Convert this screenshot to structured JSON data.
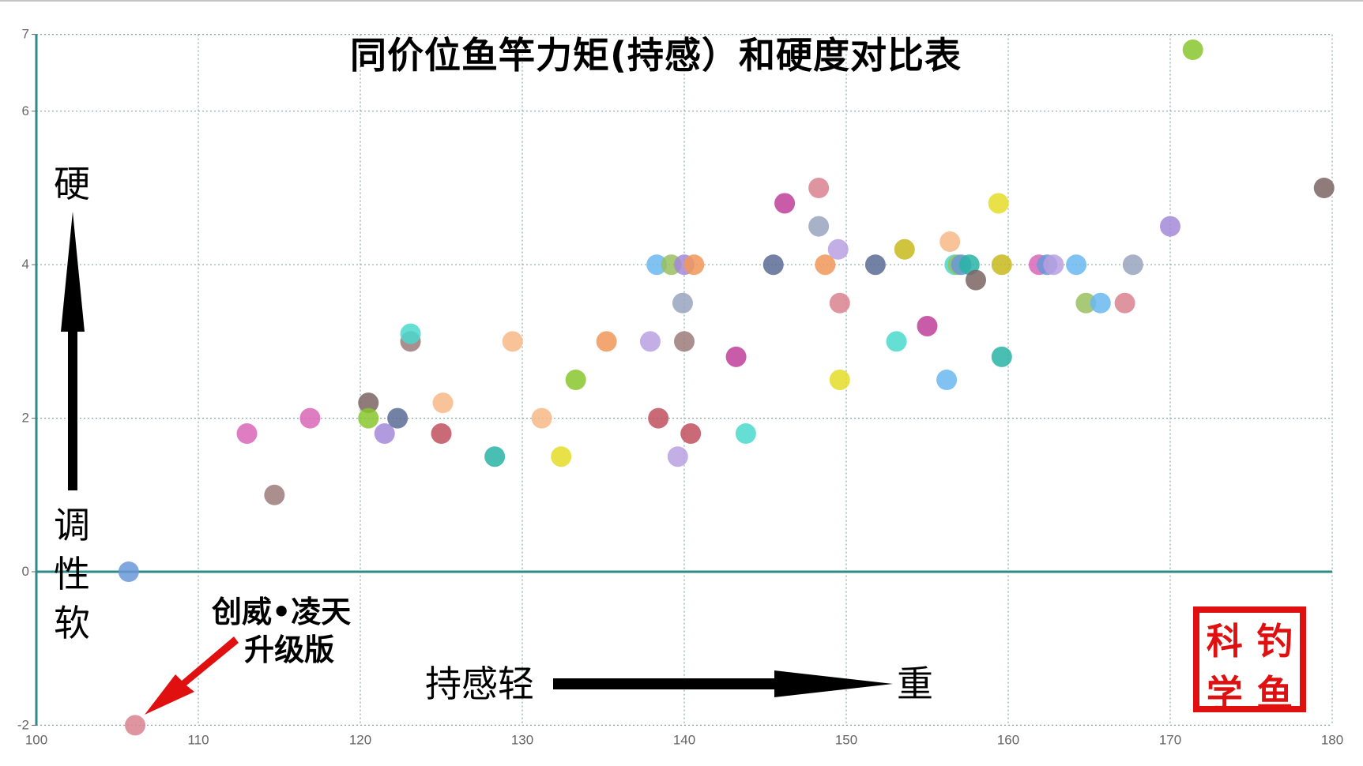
{
  "title": "同价位鱼竿力矩(持感）和硬度对比表",
  "y_axis_label": {
    "top": "硬",
    "bottom_chars": [
      "调",
      "性",
      "软"
    ]
  },
  "x_axis_label": {
    "left": "持感轻",
    "right": "重"
  },
  "annotation": {
    "line1": "创威•凌天",
    "line2": "升级版"
  },
  "seal": {
    "chars": [
      "科",
      "钓",
      "学",
      "鱼"
    ]
  },
  "colors": {
    "axis": "#2e8b87",
    "grid": "#8aa6a6",
    "arrow": "#000000",
    "highlight_arrow": "#e01010",
    "seal": "#e01010"
  },
  "chart_data": {
    "type": "scatter",
    "title": "同价位鱼竿力矩(持感）和硬度对比表",
    "xlabel": "持感轻 → 重",
    "ylabel": "调性软 → 硬",
    "xlim": [
      100,
      180
    ],
    "ylim": [
      -2,
      7
    ],
    "x_ticks": [
      100,
      110,
      120,
      130,
      140,
      150,
      160,
      170,
      180
    ],
    "y_ticks": [
      -2,
      0,
      2,
      4,
      6,
      7
    ],
    "grid": true,
    "legend": null,
    "annotations": [
      {
        "text": "创威•凌天 升级版",
        "points_to": [
          106.1,
          -2.0
        ]
      }
    ],
    "points": [
      {
        "x": 105.7,
        "y": 0.0,
        "color": "#6a98d8"
      },
      {
        "x": 106.1,
        "y": -2.0,
        "color": "#d9828f"
      },
      {
        "x": 113.0,
        "y": 1.8,
        "color": "#d966b8"
      },
      {
        "x": 114.7,
        "y": 1.0,
        "color": "#9c7b7b"
      },
      {
        "x": 116.9,
        "y": 2.0,
        "color": "#d966b8"
      },
      {
        "x": 120.5,
        "y": 2.2,
        "color": "#7d6464"
      },
      {
        "x": 120.5,
        "y": 2.0,
        "color": "#88c72e"
      },
      {
        "x": 121.5,
        "y": 1.8,
        "color": "#a588d8"
      },
      {
        "x": 122.3,
        "y": 2.0,
        "color": "#5a6c94"
      },
      {
        "x": 123.1,
        "y": 3.0,
        "color": "#9c7b7b"
      },
      {
        "x": 123.1,
        "y": 3.1,
        "color": "#4ad8cc"
      },
      {
        "x": 125.0,
        "y": 1.8,
        "color": "#c0505e"
      },
      {
        "x": 125.1,
        "y": 2.2,
        "color": "#f8b888"
      },
      {
        "x": 128.3,
        "y": 1.5,
        "color": "#28b4a4"
      },
      {
        "x": 129.4,
        "y": 3.0,
        "color": "#f8b888"
      },
      {
        "x": 131.2,
        "y": 2.0,
        "color": "#f8b888"
      },
      {
        "x": 132.4,
        "y": 1.5,
        "color": "#e4dc28"
      },
      {
        "x": 133.3,
        "y": 2.5,
        "color": "#88c72e"
      },
      {
        "x": 135.2,
        "y": 3.0,
        "color": "#f0985a"
      },
      {
        "x": 137.9,
        "y": 3.0,
        "color": "#b8a0e0"
      },
      {
        "x": 138.3,
        "y": 4.0,
        "color": "#6ab8f0"
      },
      {
        "x": 138.4,
        "y": 2.0,
        "color": "#c0505e"
      },
      {
        "x": 139.2,
        "y": 4.0,
        "color": "#98c060"
      },
      {
        "x": 139.6,
        "y": 1.5,
        "color": "#b8a0e0"
      },
      {
        "x": 139.9,
        "y": 3.5,
        "color": "#98a4c0"
      },
      {
        "x": 140.0,
        "y": 3.0,
        "color": "#9c7b7b"
      },
      {
        "x": 140.0,
        "y": 4.0,
        "color": "#a588d8"
      },
      {
        "x": 140.4,
        "y": 1.8,
        "color": "#c0505e"
      },
      {
        "x": 140.6,
        "y": 4.0,
        "color": "#f0985a"
      },
      {
        "x": 143.2,
        "y": 2.8,
        "color": "#c0409a"
      },
      {
        "x": 143.8,
        "y": 1.8,
        "color": "#4ad8cc"
      },
      {
        "x": 145.5,
        "y": 4.0,
        "color": "#5a6c94"
      },
      {
        "x": 146.2,
        "y": 4.8,
        "color": "#c0409a"
      },
      {
        "x": 148.3,
        "y": 5.0,
        "color": "#d9828f"
      },
      {
        "x": 148.3,
        "y": 4.5,
        "color": "#98a4c0"
      },
      {
        "x": 148.7,
        "y": 4.0,
        "color": "#f0985a"
      },
      {
        "x": 149.5,
        "y": 4.2,
        "color": "#b8a0e0"
      },
      {
        "x": 149.6,
        "y": 3.5,
        "color": "#d9828f"
      },
      {
        "x": 149.6,
        "y": 2.5,
        "color": "#e4dc28"
      },
      {
        "x": 151.8,
        "y": 4.0,
        "color": "#5a6c94"
      },
      {
        "x": 153.1,
        "y": 3.0,
        "color": "#4ad8cc"
      },
      {
        "x": 153.6,
        "y": 4.2,
        "color": "#c8b81c"
      },
      {
        "x": 155.0,
        "y": 3.2,
        "color": "#c0409a"
      },
      {
        "x": 156.2,
        "y": 2.5,
        "color": "#6ab8f0"
      },
      {
        "x": 156.4,
        "y": 4.3,
        "color": "#f8b888"
      },
      {
        "x": 156.7,
        "y": 4.0,
        "color": "#4ad8cc"
      },
      {
        "x": 156.9,
        "y": 4.0,
        "color": "#98c060"
      },
      {
        "x": 157.1,
        "y": 4.0,
        "color": "#6a98d8"
      },
      {
        "x": 157.6,
        "y": 4.0,
        "color": "#28b4a4"
      },
      {
        "x": 158.0,
        "y": 3.8,
        "color": "#7d6464"
      },
      {
        "x": 159.4,
        "y": 4.8,
        "color": "#e4dc28"
      },
      {
        "x": 159.6,
        "y": 4.0,
        "color": "#c8b81c"
      },
      {
        "x": 159.6,
        "y": 2.8,
        "color": "#28b4a4"
      },
      {
        "x": 161.9,
        "y": 4.0,
        "color": "#d966b8"
      },
      {
        "x": 162.4,
        "y": 4.0,
        "color": "#6a98d8"
      },
      {
        "x": 162.8,
        "y": 4.0,
        "color": "#b8a0e0"
      },
      {
        "x": 164.2,
        "y": 4.0,
        "color": "#6ab8f0"
      },
      {
        "x": 164.8,
        "y": 3.5,
        "color": "#98c060"
      },
      {
        "x": 165.7,
        "y": 3.5,
        "color": "#6ab8f0"
      },
      {
        "x": 167.2,
        "y": 3.5,
        "color": "#d9828f"
      },
      {
        "x": 167.7,
        "y": 4.0,
        "color": "#98a4c0"
      },
      {
        "x": 170.0,
        "y": 4.5,
        "color": "#a588d8"
      },
      {
        "x": 171.4,
        "y": 6.8,
        "color": "#88c72e"
      },
      {
        "x": 179.5,
        "y": 5.0,
        "color": "#7d6464"
      }
    ]
  }
}
